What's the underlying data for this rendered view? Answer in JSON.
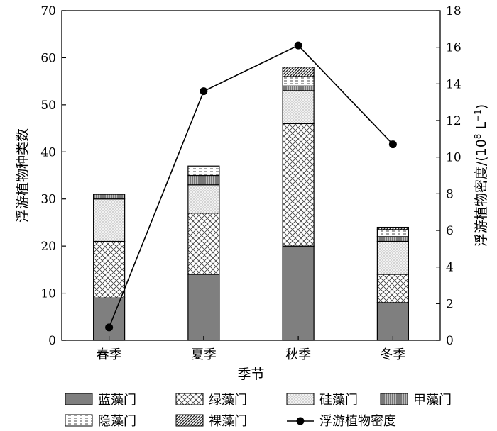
{
  "chart_data": {
    "type": "bar",
    "stacked": true,
    "categories": [
      "春季",
      "夏季",
      "秋季",
      "冬季"
    ],
    "xlabel": "季节",
    "ylabel_left": "浮游植物种类数",
    "ylabel_right": "浮游植物密度/(10",
    "ylabel_right_exp": "8",
    "ylabel_right_unit": " L",
    "ylabel_right_unit_exp": "−1",
    "ylabel_right_close": ")",
    "ylim_left": [
      0,
      70
    ],
    "yticks_left": [
      0,
      10,
      20,
      30,
      40,
      50,
      60,
      70
    ],
    "ylim_right": [
      0,
      18
    ],
    "yticks_right": [
      0,
      2,
      4,
      6,
      8,
      10,
      12,
      14,
      16,
      18
    ],
    "series": [
      {
        "name": "蓝藻门",
        "values": [
          9,
          14,
          20,
          8
        ],
        "pattern": "solid-gray"
      },
      {
        "name": "绿藻门",
        "values": [
          12,
          13,
          26,
          6
        ],
        "pattern": "crosshatch"
      },
      {
        "name": "硅藻门",
        "values": [
          9,
          6,
          7,
          7
        ],
        "pattern": "fine-dots"
      },
      {
        "name": "甲藻门",
        "values": [
          1,
          2,
          1,
          1
        ],
        "pattern": "vertical-lines"
      },
      {
        "name": "隐藻门",
        "values": [
          0,
          2,
          2,
          1.5
        ],
        "pattern": "dashes"
      },
      {
        "name": "裸藻门",
        "values": [
          0,
          0,
          2,
          0.5
        ],
        "pattern": "diagonal"
      }
    ],
    "line_series": {
      "name": "浮游植物密度",
      "axis": "right",
      "values": [
        0.7,
        13.6,
        16.1,
        10.7
      ]
    },
    "legend_position": "bottom"
  }
}
